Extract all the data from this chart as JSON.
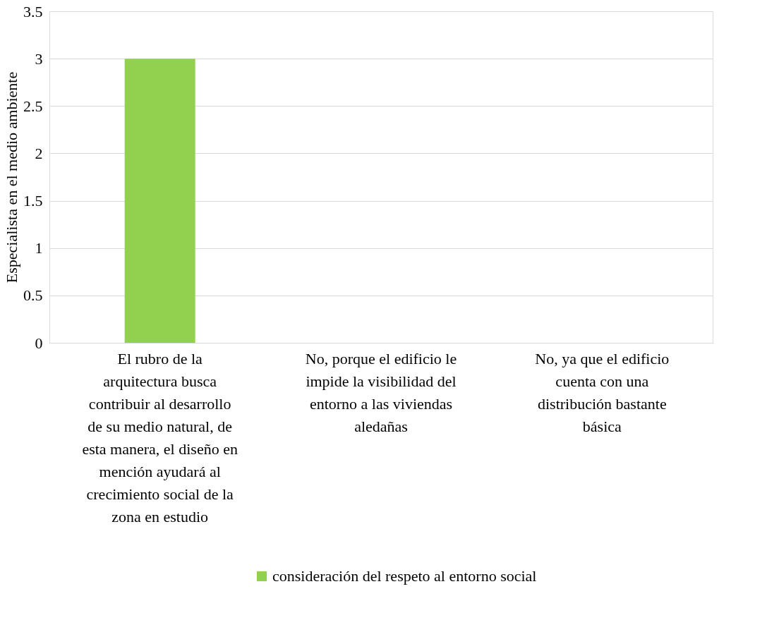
{
  "chart_data": {
    "type": "bar",
    "ylabel": "Especialista en el medio ambiente",
    "categories": [
      "El rubro de la arquitectura busca contribuir al desarrollo de su medio natural, de esta manera, el diseño en mención ayudará al crecimiento social de la zona en estudio",
      "No, porque el edificio le impide la visibilidad del entorno a las viviendas aledañas",
      "No, ya que el edificio cuenta con una distribución bastante básica"
    ],
    "series": [
      {
        "name": "consideración del respeto al entorno social",
        "color": "#92d050",
        "values": [
          3,
          0,
          0
        ]
      }
    ],
    "ylim": [
      0,
      3.5
    ],
    "yticks": [
      0,
      0.5,
      1,
      1.5,
      2,
      2.5,
      3,
      3.5
    ],
    "grid": "y",
    "legend": "bottom"
  }
}
